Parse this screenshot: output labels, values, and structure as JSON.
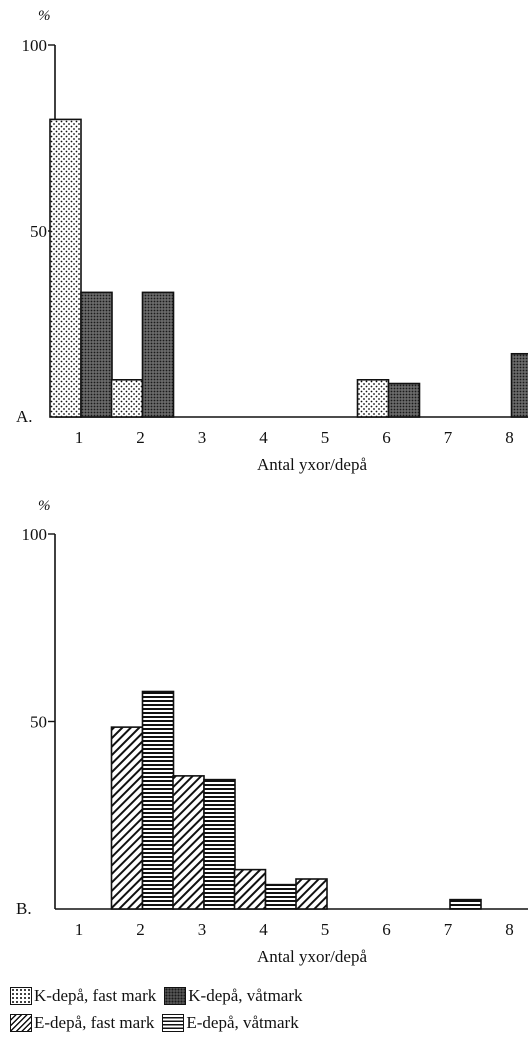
{
  "chart_data": [
    {
      "type": "bar",
      "panel_label": "A.",
      "unit_label": "%",
      "xlabel": "Antal yxor/depå",
      "categories": [
        "1",
        "2",
        "3",
        "4",
        "5",
        "6",
        "7",
        "8"
      ],
      "ylim": [
        0,
        100
      ],
      "y_ticks": [
        100,
        50
      ],
      "series": [
        {
          "key": "kfast",
          "name": "K-depå, fast mark",
          "values": [
            80,
            10,
            0,
            0,
            0,
            10,
            0,
            0
          ]
        },
        {
          "key": "kvat",
          "name": "K-depå, våtmark",
          "values": [
            33.5,
            33.5,
            0,
            0,
            0,
            9,
            0,
            17
          ]
        }
      ]
    },
    {
      "type": "bar",
      "panel_label": "B.",
      "unit_label": "%",
      "xlabel": "Antal yxor/depå",
      "categories": [
        "1",
        "2",
        "3",
        "4",
        "5",
        "6",
        "7",
        "8"
      ],
      "ylim": [
        0,
        100
      ],
      "y_ticks": [
        100,
        50
      ],
      "series": [
        {
          "key": "efast",
          "name": "E-depå, fast mark",
          "values": [
            0,
            48.5,
            35.5,
            10.5,
            8,
            0,
            0,
            0
          ]
        },
        {
          "key": "evat",
          "name": "E-depå, våtmark",
          "values": [
            0,
            58,
            34.5,
            6.5,
            0,
            0,
            2.5,
            0
          ]
        }
      ]
    }
  ],
  "legend": {
    "kfast": "K-depå, fast mark",
    "kvat": "K-depå, våtmark",
    "efast": "E-depå, fast mark",
    "evat": "E-depå, våtmark"
  }
}
